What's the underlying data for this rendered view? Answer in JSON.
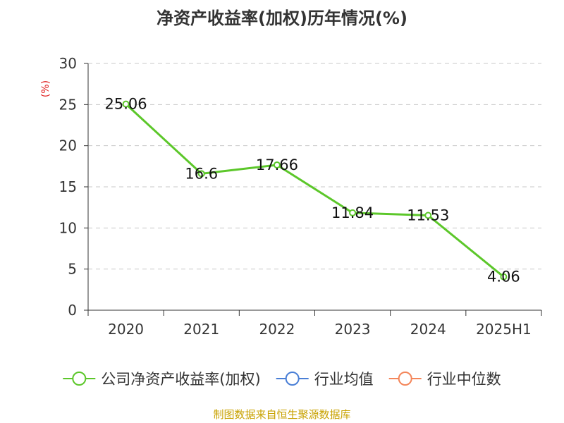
{
  "chart_data": {
    "type": "line",
    "title": "净资产收益率(加权)历年情况(%)",
    "ylabel": "(%)",
    "xlabel": "",
    "categories": [
      "2020",
      "2021",
      "2022",
      "2023",
      "2024",
      "2025H1"
    ],
    "ylim": [
      0,
      30
    ],
    "yticks": [
      0,
      5,
      10,
      15,
      20,
      25,
      30
    ],
    "grid": true,
    "legend_position": "bottom",
    "series": [
      {
        "name": "公司净资产收益率(加权)",
        "color": "#5cc72a",
        "values": [
          25.06,
          16.6,
          17.66,
          11.84,
          11.53,
          4.06
        ],
        "data_labels": [
          "25.06",
          "16.6",
          "17.66",
          "11.84",
          "11.53",
          "4.06"
        ]
      }
    ],
    "legend": [
      {
        "name": "公司净资产收益率(加权)",
        "color": "#5cc72a"
      },
      {
        "name": "行业均值",
        "color": "#4a7fd6"
      },
      {
        "name": "行业中位数",
        "color": "#f4865a"
      }
    ]
  },
  "source": "制图数据来自恒生聚源数据库"
}
